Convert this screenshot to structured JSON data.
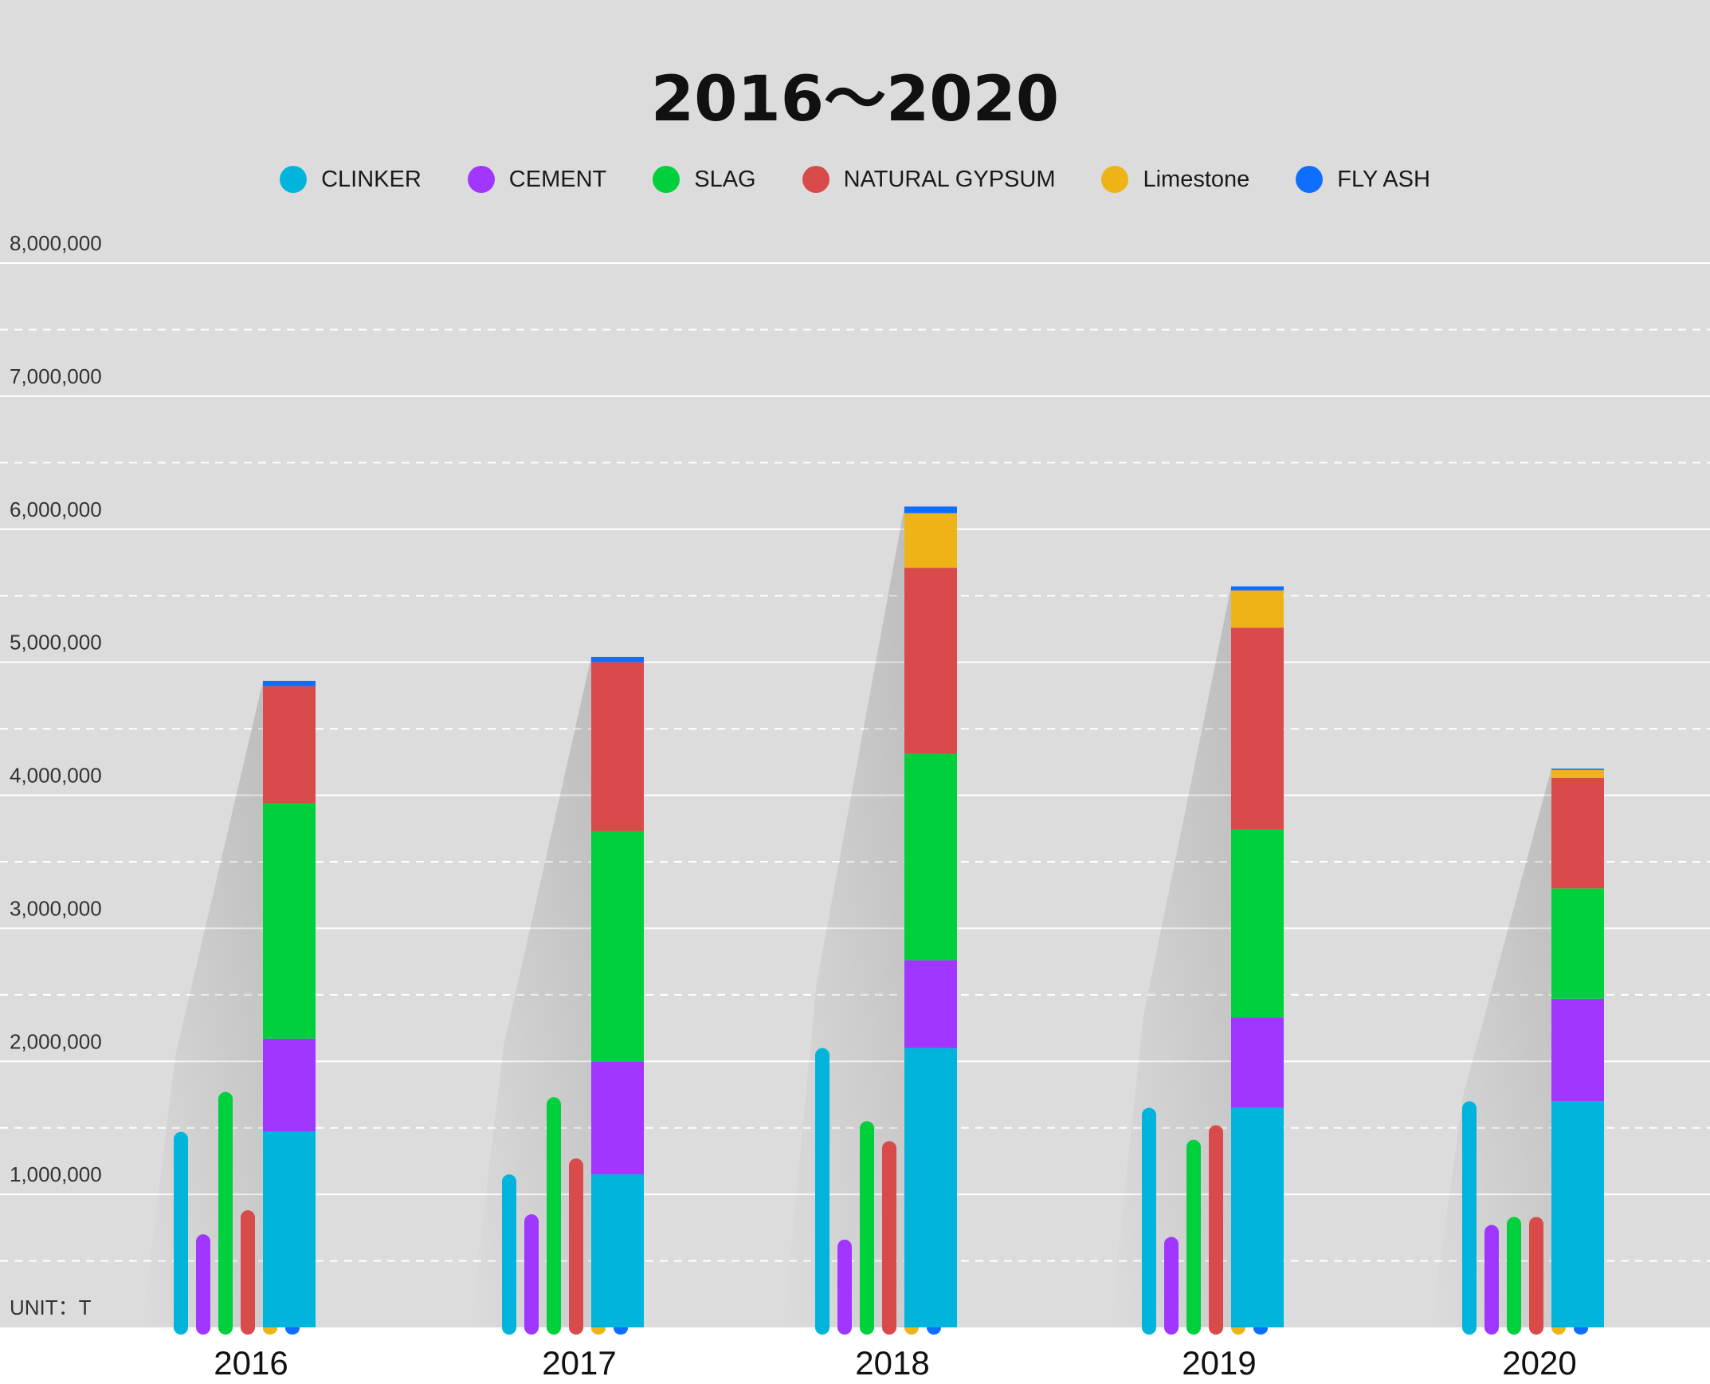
{
  "chart_data": {
    "type": "bar",
    "title": "2016～2020",
    "unit_label": "UNIT：T",
    "categories": [
      "2016",
      "2017",
      "2018",
      "2019",
      "2020"
    ],
    "ylim": [
      0,
      8000000
    ],
    "yticks": [
      "8,000,000",
      "7,000,000",
      "6,000,000",
      "5,000,000",
      "4,000,000",
      "3,000,000",
      "2,000,000",
      "1,000,000"
    ],
    "grid": true,
    "legend_position": "top",
    "series": [
      {
        "name": "CLINKER",
        "color": "#00b4dc",
        "values": [
          1470000,
          1150000,
          2100000,
          1650000,
          1700000
        ]
      },
      {
        "name": "CEMENT",
        "color": "#a036ff",
        "values": [
          700000,
          850000,
          660000,
          680000,
          770000
        ]
      },
      {
        "name": "SLAG",
        "color": "#00d03c",
        "values": [
          1770000,
          1730000,
          1550000,
          1410000,
          830000
        ]
      },
      {
        "name": "NATURAL GYPSUM",
        "color": "#d94a4a",
        "values": [
          880000,
          1270000,
          1400000,
          1520000,
          830000
        ]
      },
      {
        "name": "Limestone",
        "color": "#eeb417",
        "values": [
          0,
          0,
          410000,
          280000,
          60000
        ]
      },
      {
        "name": "FLY ASH",
        "color": "#0d6eff",
        "values": [
          40000,
          40000,
          50000,
          30000,
          10000
        ]
      }
    ]
  }
}
